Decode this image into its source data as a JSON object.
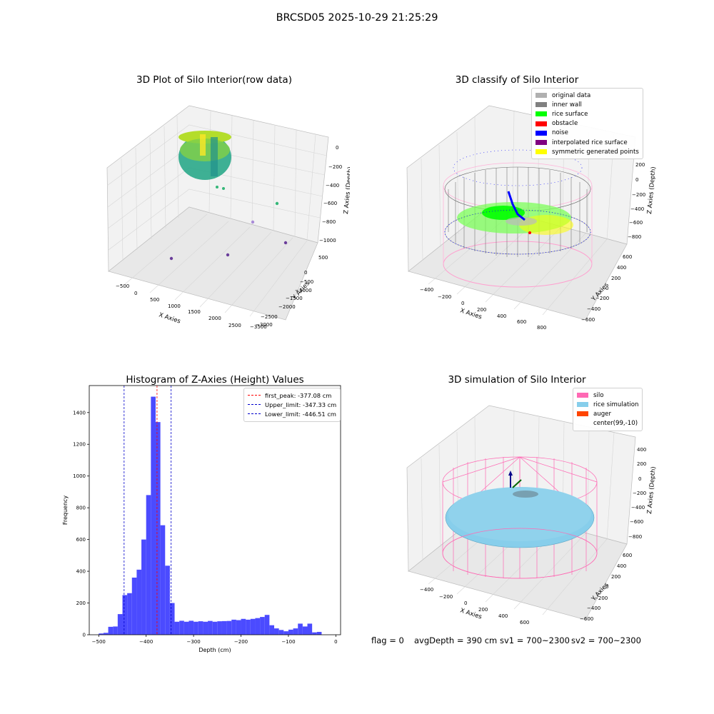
{
  "figure": {
    "suptitle": "BRCSD05 2025-10-29 21:25:29",
    "status": {
      "flag": "flag = 0",
      "avg_depth": "avgDepth = 390 cm",
      "sv1": "sv1 = 700~2300",
      "sv2": "sv2 = 700~2300"
    }
  },
  "colors": {
    "hist_bar": "#4b4bff",
    "first_peak": "#ff0000",
    "limits": "#0000cc",
    "silo": "#ff69b4",
    "rice_simulation": "#87ceeb",
    "auger": "#ff4500",
    "original_data": "#b0b0b0",
    "inner_wall": "#808080",
    "rice_surface": "#00ff00",
    "obstacle": "#ff0000",
    "noise": "#0000ff",
    "interpolated_rice_surface": "#800080",
    "symmetric_generated_points": "#ffff00"
  },
  "panels": {
    "raw": {
      "title": "3D Plot of Silo Interior(row data)",
      "xlabel": "X Axies",
      "ylabel": "Y Axies",
      "zlabel": "Z Axies (Depth)",
      "xticks": [
        "−500",
        "0",
        "500",
        "1000",
        "1500",
        "2000",
        "2500"
      ],
      "yticks": [
        "500",
        "0",
        "−500",
        "−1000",
        "−1500",
        "−2000",
        "−2500",
        "−3000",
        "−3500"
      ],
      "zticks": [
        "0",
        "−200",
        "−400",
        "−600",
        "−800",
        "−1000"
      ]
    },
    "classify": {
      "title": "3D classify of Silo Interior",
      "xlabel": "X Axies",
      "ylabel": "Y Axies",
      "zlabel": "Z Axies (Depth)",
      "xticks": [
        "−400",
        "−200",
        "0",
        "200",
        "400",
        "600",
        "800"
      ],
      "yticks": [
        "600",
        "400",
        "200",
        "0",
        "−200",
        "−400",
        "−600"
      ],
      "zticks": [
        "200",
        "0",
        "−200",
        "−400",
        "−600",
        "−800"
      ],
      "legend": [
        {
          "label": "original data",
          "color": "#b0b0b0"
        },
        {
          "label": "inner wall",
          "color": "#808080"
        },
        {
          "label": "rice surface",
          "color": "#00ff00"
        },
        {
          "label": "obstacle",
          "color": "#ff0000"
        },
        {
          "label": "noise",
          "color": "#0000ff"
        },
        {
          "label": "interpolated rice surface",
          "color": "#800080"
        },
        {
          "label": "symmetric generated points",
          "color": "#ffff00"
        }
      ]
    },
    "simulation": {
      "title": "3D simulation of Silo Interior",
      "xlabel": "X Axies",
      "ylabel": "Y Axies",
      "zlabel": "Z Axies (Depth)",
      "xticks": [
        "−400",
        "−200",
        "0",
        "200",
        "400",
        "600"
      ],
      "yticks": [
        "600",
        "400",
        "200",
        "0",
        "−200",
        "−400",
        "−600"
      ],
      "zticks": [
        "400",
        "200",
        "0",
        "−200",
        "−400",
        "−600",
        "−800"
      ],
      "legend": [
        {
          "label": "silo",
          "color": "#ff69b4"
        },
        {
          "label": "rice simulation",
          "color": "#87ceeb"
        },
        {
          "label": "auger",
          "color": "#ff4500"
        },
        {
          "label": "center(99,-10)",
          "color": ""
        }
      ]
    }
  },
  "chart_data": {
    "type": "bar",
    "title": "Histogram of Z-Axies (Height) Values",
    "xlabel": "Depth (cm)",
    "ylabel": "Frequency",
    "xlim": [
      -520,
      10
    ],
    "ylim": [
      0,
      1570
    ],
    "xticks": [
      -500,
      -400,
      -300,
      -200,
      -100,
      0
    ],
    "yticks": [
      0,
      200,
      400,
      600,
      800,
      1000,
      1200,
      1400
    ],
    "bin_width": 10,
    "bins": [
      {
        "x0": -500,
        "count": 8
      },
      {
        "x0": -490,
        "count": 12
      },
      {
        "x0": -480,
        "count": 50
      },
      {
        "x0": -470,
        "count": 52
      },
      {
        "x0": -460,
        "count": 130
      },
      {
        "x0": -450,
        "count": 250
      },
      {
        "x0": -440,
        "count": 262
      },
      {
        "x0": -430,
        "count": 360
      },
      {
        "x0": -420,
        "count": 410
      },
      {
        "x0": -410,
        "count": 600
      },
      {
        "x0": -400,
        "count": 880
      },
      {
        "x0": -390,
        "count": 1500
      },
      {
        "x0": -380,
        "count": 1340
      },
      {
        "x0": -370,
        "count": 690
      },
      {
        "x0": -360,
        "count": 435
      },
      {
        "x0": -350,
        "count": 200
      },
      {
        "x0": -340,
        "count": 82
      },
      {
        "x0": -330,
        "count": 88
      },
      {
        "x0": -320,
        "count": 82
      },
      {
        "x0": -310,
        "count": 88
      },
      {
        "x0": -300,
        "count": 82
      },
      {
        "x0": -290,
        "count": 85
      },
      {
        "x0": -280,
        "count": 82
      },
      {
        "x0": -270,
        "count": 87
      },
      {
        "x0": -260,
        "count": 82
      },
      {
        "x0": -250,
        "count": 85
      },
      {
        "x0": -240,
        "count": 86
      },
      {
        "x0": -230,
        "count": 87
      },
      {
        "x0": -220,
        "count": 95
      },
      {
        "x0": -210,
        "count": 92
      },
      {
        "x0": -200,
        "count": 100
      },
      {
        "x0": -190,
        "count": 95
      },
      {
        "x0": -180,
        "count": 100
      },
      {
        "x0": -170,
        "count": 105
      },
      {
        "x0": -160,
        "count": 112
      },
      {
        "x0": -150,
        "count": 125
      },
      {
        "x0": -140,
        "count": 60
      },
      {
        "x0": -130,
        "count": 40
      },
      {
        "x0": -120,
        "count": 30
      },
      {
        "x0": -110,
        "count": 22
      },
      {
        "x0": -100,
        "count": 32
      },
      {
        "x0": -90,
        "count": 40
      },
      {
        "x0": -80,
        "count": 70
      },
      {
        "x0": -70,
        "count": 52
      },
      {
        "x0": -60,
        "count": 70
      },
      {
        "x0": -50,
        "count": 15
      },
      {
        "x0": -40,
        "count": 18
      },
      {
        "x0": -30,
        "count": 0
      }
    ],
    "vlines": [
      {
        "x": -377.08,
        "label": "first_peak: -377.08 cm",
        "color": "#ff0000"
      },
      {
        "x": -347.33,
        "label": "Upper_limit: -347.33 cm",
        "color": "#0000cc"
      },
      {
        "x": -446.51,
        "label": "Lower_limit: -446.51 cm",
        "color": "#0000cc"
      }
    ],
    "legend_position": "upper right"
  }
}
